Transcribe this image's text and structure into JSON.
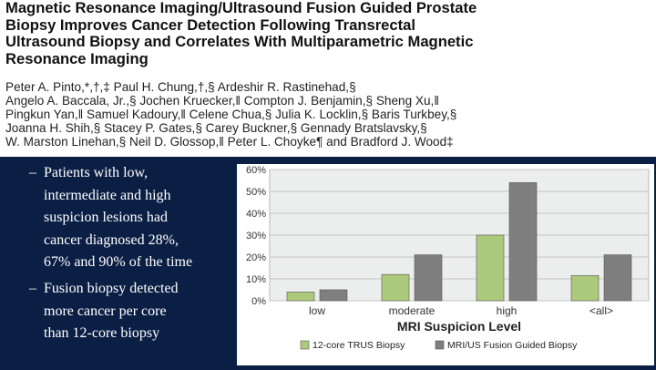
{
  "header": {
    "title_lines": [
      "Magnetic Resonance Imaging/Ultrasound Fusion Guided Prostate",
      "Biopsy Improves Cancer Detection Following Transrectal",
      "Ultrasound Biopsy and Correlates With Multiparametric Magnetic",
      "Resonance Imaging"
    ],
    "author_lines": [
      "Peter A. Pinto,*,†,‡ Paul H. Chung,†,§ Ardeshir R. Rastinehad,§",
      "Angelo A. Baccala, Jr.,§ Jochen Kruecker,‖ Compton J. Benjamin,§ Sheng Xu,‖",
      "Pingkun Yan,‖ Samuel Kadoury,‖ Celene Chua,§ Julia K. Locklin,§ Baris Turkbey,§",
      "Joanna H. Shih,§ Stacey P. Gates,§ Carey Buckner,§ Gennady Bratslavsky,§",
      "W. Marston Linehan,§ Neil D. Glossop,‖ Peter L. Choyke¶ and Bradford J. Wood‡"
    ]
  },
  "bullets": [
    {
      "marker": "–",
      "lines": [
        "Patients with low,",
        "intermediate and high",
        "suspicion lesions had",
        "cancer diagnosed 28%,",
        "67% and 90% of the time"
      ]
    },
    {
      "marker": "–",
      "lines": [
        "Fusion biopsy detected",
        "more cancer per core",
        "than 12-core biopsy"
      ]
    }
  ],
  "colors": {
    "slide_background": "#0b1f45",
    "plot_background": "#eceeed",
    "series_trus": "#adc97b",
    "series_fusion": "#7f7f7f"
  },
  "chart_data": {
    "type": "bar",
    "categories": [
      "low",
      "moderate",
      "high",
      "<all>"
    ],
    "series": [
      {
        "name": "12-core TRUS Biopsy",
        "values": [
          4,
          12,
          30,
          11.5
        ]
      },
      {
        "name": "MRI/US Fusion Guided Biopsy",
        "values": [
          5,
          21,
          54,
          21
        ]
      }
    ],
    "xlabel": "MRI Suspicion Level",
    "ylabel": "",
    "ylim": [
      0,
      60
    ],
    "yticks": [
      "0%",
      "10%",
      "20%",
      "30%",
      "40%",
      "50%",
      "60%"
    ],
    "grid": true,
    "legend_position": "bottom"
  }
}
